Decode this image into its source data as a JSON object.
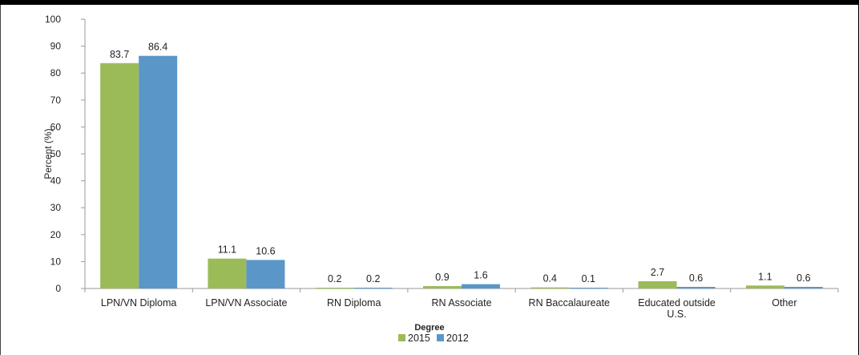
{
  "chart_data": {
    "type": "bar",
    "categories": [
      "LPN/VN Diploma",
      "LPN/VN Associate",
      "RN Diploma",
      "RN Associate",
      "RN Baccalaureate",
      "Educated outside U.S.",
      "Other"
    ],
    "series": [
      {
        "name": "2015",
        "values": [
          83.7,
          11.1,
          0.2,
          0.9,
          0.4,
          2.7,
          1.1
        ],
        "color": "#9bbb59"
      },
      {
        "name": "2012",
        "values": [
          86.4,
          10.6,
          0.2,
          1.6,
          0.1,
          0.6,
          0.6
        ],
        "color": "#5b96c9"
      }
    ],
    "title": "",
    "xlabel": "Degree",
    "ylabel": "Percent (%)",
    "ylim": [
      0,
      100
    ],
    "yticks": [
      0,
      10,
      20,
      30,
      40,
      50,
      60,
      70,
      80,
      90,
      100
    ],
    "grid": false,
    "legend_position": "bottom",
    "data_labels": true
  }
}
